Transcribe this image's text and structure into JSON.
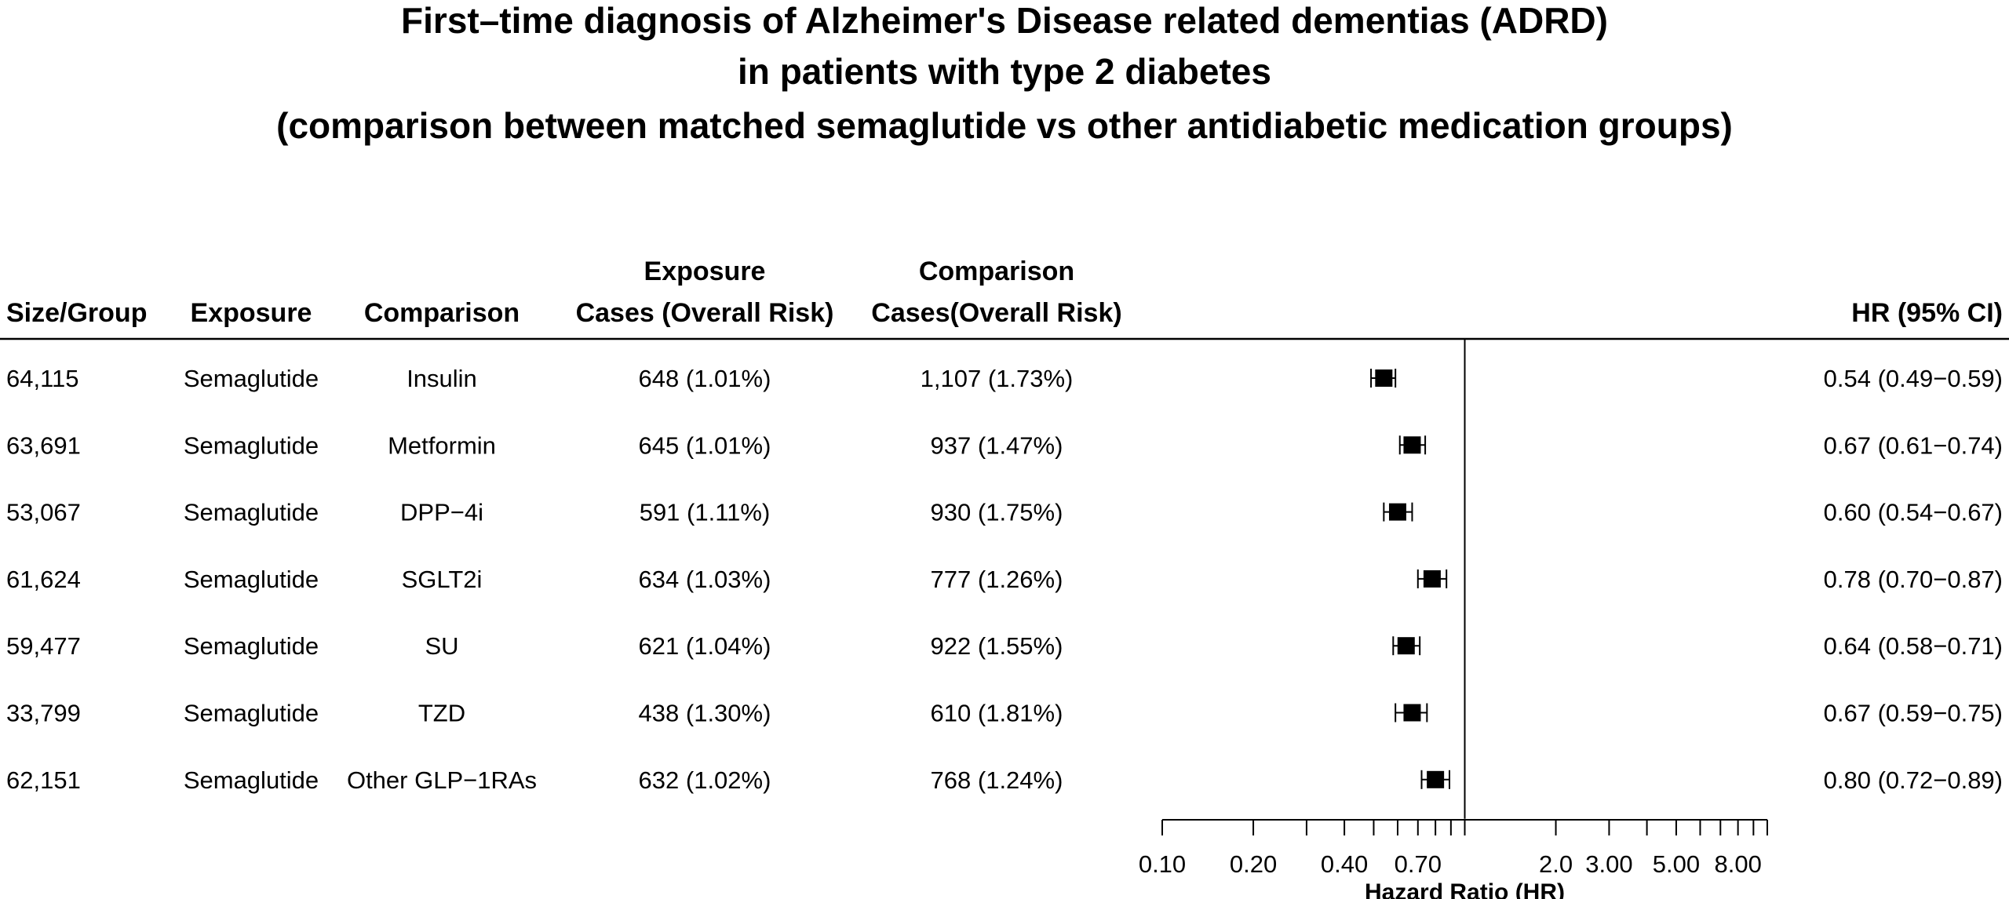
{
  "chart_data": {
    "type": "forest",
    "title": [
      "First–time diagnosis of Alzheimer's Disease related dementias (ADRD)",
      "in patients with type 2 diabetes",
      "(comparison between matched semaglutide vs other antidiabetic medication groups)"
    ],
    "columns": {
      "size": "Size/Group",
      "exposure": "Exposure",
      "comparison": "Comparison",
      "exposure_cases": [
        "Exposure",
        "Cases (Overall Risk)"
      ],
      "comparison_cases": [
        "Comparison",
        "Cases(Overall Risk)"
      ],
      "hr": "HR (95% CI)"
    },
    "rows": [
      {
        "size": "64,115",
        "exposure": "Semaglutide",
        "comparison": "Insulin",
        "exposure_cases": "648 (1.01%)",
        "comparison_cases": "1,107 (1.73%)",
        "hr_text": "0.54 (0.49−0.59)",
        "hr": 0.54,
        "lo": 0.49,
        "hi": 0.59
      },
      {
        "size": "63,691",
        "exposure": "Semaglutide",
        "comparison": "Metformin",
        "exposure_cases": "645 (1.01%)",
        "comparison_cases": "937 (1.47%)",
        "hr_text": "0.67 (0.61−0.74)",
        "hr": 0.67,
        "lo": 0.61,
        "hi": 0.74
      },
      {
        "size": "53,067",
        "exposure": "Semaglutide",
        "comparison": "DPP−4i",
        "exposure_cases": "591 (1.11%)",
        "comparison_cases": "930 (1.75%)",
        "hr_text": "0.60 (0.54−0.67)",
        "hr": 0.6,
        "lo": 0.54,
        "hi": 0.67
      },
      {
        "size": "61,624",
        "exposure": "Semaglutide",
        "comparison": "SGLT2i",
        "exposure_cases": "634 (1.03%)",
        "comparison_cases": "777 (1.26%)",
        "hr_text": "0.78 (0.70−0.87)",
        "hr": 0.78,
        "lo": 0.7,
        "hi": 0.87
      },
      {
        "size": "59,477",
        "exposure": "Semaglutide",
        "comparison": "SU",
        "exposure_cases": "621 (1.04%)",
        "comparison_cases": "922 (1.55%)",
        "hr_text": "0.64 (0.58−0.71)",
        "hr": 0.64,
        "lo": 0.58,
        "hi": 0.71
      },
      {
        "size": "33,799",
        "exposure": "Semaglutide",
        "comparison": "TZD",
        "exposure_cases": "438 (1.30%)",
        "comparison_cases": "610 (1.81%)",
        "hr_text": "0.67 (0.59−0.75)",
        "hr": 0.67,
        "lo": 0.59,
        "hi": 0.75
      },
      {
        "size": "62,151",
        "exposure": "Semaglutide",
        "comparison": "Other GLP−1RAs",
        "exposure_cases": "632 (1.02%)",
        "comparison_cases": "768 (1.24%)",
        "hr_text": "0.80 (0.72−0.89)",
        "hr": 0.8,
        "lo": 0.72,
        "hi": 0.89
      }
    ],
    "x_axis": {
      "scale": "log",
      "label": "Hazard Ratio (HR)",
      "range": [
        0.1,
        10
      ],
      "reference_line": 1,
      "ticks": [
        0.1,
        0.2,
        0.3,
        0.4,
        0.5,
        0.6,
        0.7,
        0.8,
        0.9,
        1,
        2,
        3,
        4,
        5,
        6,
        7,
        8,
        9,
        10
      ],
      "tick_labels": [
        {
          "value": 0.1,
          "label": "0.10"
        },
        {
          "value": 0.2,
          "label": "0.20"
        },
        {
          "value": 0.4,
          "label": "0.40"
        },
        {
          "value": 0.7,
          "label": "0.70"
        },
        {
          "value": 2,
          "label": "2.0"
        },
        {
          "value": 3,
          "label": "3.00"
        },
        {
          "value": 5,
          "label": "5.00"
        },
        {
          "value": 8,
          "label": "8.00"
        }
      ]
    },
    "colors": {
      "marker": "#000000",
      "lines": "#000000",
      "text": "#000000"
    }
  }
}
